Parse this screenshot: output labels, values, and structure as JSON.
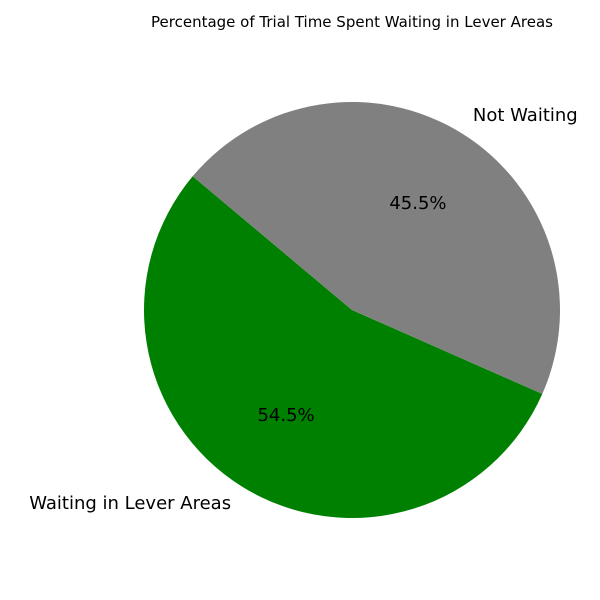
{
  "chart_data": {
    "type": "pie",
    "title": "Percentage of Trial Time Spent Waiting in Lever Areas",
    "slices": [
      {
        "label": "Waiting in Lever Areas",
        "value": 54.5,
        "pct_label": "54.5%",
        "color": "#008000"
      },
      {
        "label": "Not Waiting",
        "value": 45.5,
        "pct_label": "45.5%",
        "color": "#808080"
      }
    ],
    "start_angle_deg": 140,
    "direction": "counterclockwise"
  }
}
